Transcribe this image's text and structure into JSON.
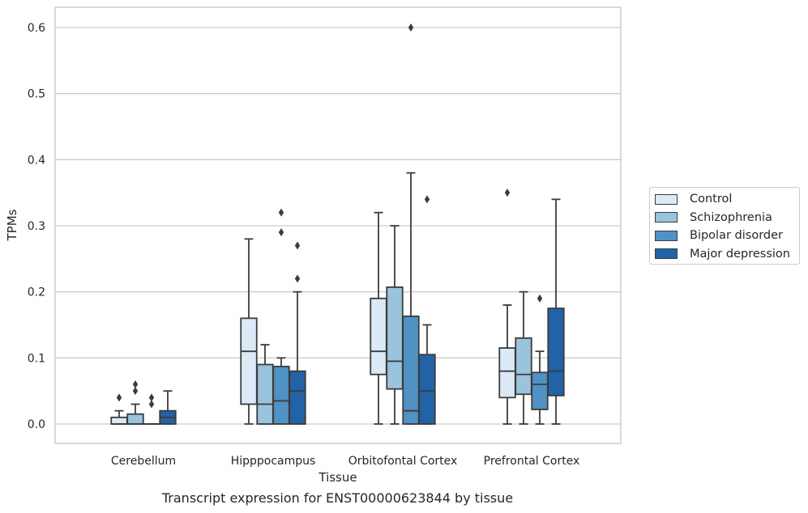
{
  "caption": "Transcript expression for ENST00000623844 by tissue",
  "colors": {
    "Control": "#dce9f6",
    "Schizophrenia": "#9ac3dd",
    "Bipolar disorder": "#4f92c3",
    "Major depression": "#2262a6",
    "box_edge": "#3c3c3c",
    "grid": "#cccccc"
  },
  "chart_data": {
    "type": "boxplot",
    "xlabel": "Tissue",
    "ylabel": "TPMs",
    "ylim": [
      -0.03,
      0.63
    ],
    "yticks": [
      0.0,
      0.1,
      0.2,
      0.3,
      0.4,
      0.5,
      0.6
    ],
    "ytick_labels": [
      "0.0",
      "0.1",
      "0.2",
      "0.3",
      "0.4",
      "0.5",
      "0.6"
    ],
    "grid": true,
    "legend_position": "right",
    "categories": [
      "Cerebellum",
      "Hipppocampus",
      "Orbitofontal Cortex",
      "Prefrontal Cortex"
    ],
    "series": [
      {
        "name": "Control",
        "boxes": [
          {
            "whislo": 0.0,
            "q1": 0.0,
            "med": 0.0,
            "q3": 0.01,
            "whishi": 0.02,
            "fliers": [
              0.04
            ]
          },
          {
            "whislo": 0.0,
            "q1": 0.03,
            "med": 0.11,
            "q3": 0.16,
            "whishi": 0.28,
            "fliers": []
          },
          {
            "whislo": 0.0,
            "q1": 0.075,
            "med": 0.11,
            "q3": 0.19,
            "whishi": 0.32,
            "fliers": []
          },
          {
            "whislo": 0.0,
            "q1": 0.04,
            "med": 0.08,
            "q3": 0.115,
            "whishi": 0.18,
            "fliers": [
              0.35
            ]
          }
        ]
      },
      {
        "name": "Schizophrenia",
        "boxes": [
          {
            "whislo": 0.0,
            "q1": 0.0,
            "med": 0.0,
            "q3": 0.015,
            "whishi": 0.03,
            "fliers": [
              0.05,
              0.06
            ]
          },
          {
            "whislo": 0.0,
            "q1": 0.0,
            "med": 0.03,
            "q3": 0.09,
            "whishi": 0.12,
            "fliers": []
          },
          {
            "whislo": 0.0,
            "q1": 0.053,
            "med": 0.095,
            "q3": 0.207,
            "whishi": 0.3,
            "fliers": []
          },
          {
            "whislo": 0.0,
            "q1": 0.045,
            "med": 0.075,
            "q3": 0.13,
            "whishi": 0.2,
            "fliers": []
          }
        ]
      },
      {
        "name": "Bipolar disorder",
        "boxes": [
          {
            "whislo": 0.0,
            "q1": 0.0,
            "med": 0.0,
            "q3": 0.0,
            "whishi": 0.0,
            "fliers": [
              0.03,
              0.04
            ]
          },
          {
            "whislo": 0.0,
            "q1": 0.0,
            "med": 0.035,
            "q3": 0.087,
            "whishi": 0.1,
            "fliers": [
              0.29,
              0.32
            ]
          },
          {
            "whislo": 0.0,
            "q1": 0.0,
            "med": 0.02,
            "q3": 0.163,
            "whishi": 0.38,
            "fliers": [
              0.6
            ]
          },
          {
            "whislo": 0.0,
            "q1": 0.022,
            "med": 0.06,
            "q3": 0.078,
            "whishi": 0.11,
            "fliers": [
              0.19
            ]
          }
        ]
      },
      {
        "name": "Major depression",
        "boxes": [
          {
            "whislo": 0.0,
            "q1": 0.0,
            "med": 0.01,
            "q3": 0.02,
            "whishi": 0.05,
            "fliers": []
          },
          {
            "whislo": 0.0,
            "q1": 0.0,
            "med": 0.05,
            "q3": 0.08,
            "whishi": 0.2,
            "fliers": [
              0.22,
              0.27
            ]
          },
          {
            "whislo": 0.0,
            "q1": 0.0,
            "med": 0.05,
            "q3": 0.105,
            "whishi": 0.15,
            "fliers": [
              0.34
            ]
          },
          {
            "whislo": 0.0,
            "q1": 0.043,
            "med": 0.08,
            "q3": 0.175,
            "whishi": 0.34,
            "fliers": []
          }
        ]
      }
    ]
  }
}
